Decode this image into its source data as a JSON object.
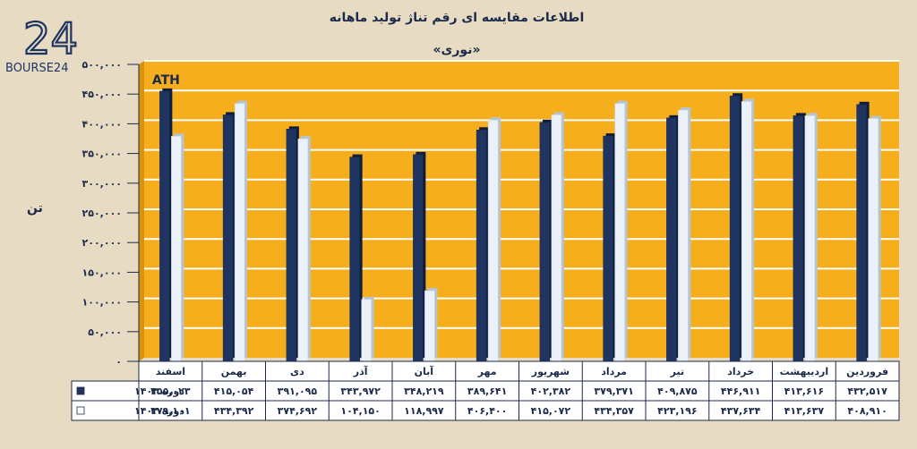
{
  "logo": {
    "text": "BOURSE24",
    "mark": "24"
  },
  "chart_data": {
    "type": "bar",
    "title": "اطلاعات مقایسه ای رقم تناژ تولید ماهانه",
    "subtitle": "«نوری»",
    "ylabel": "تن",
    "ylim": [
      0,
      500000
    ],
    "yticks": [
      "۰",
      "۵۰,۰۰۰",
      "۱۰۰,۰۰۰",
      "۱۵۰,۰۰۰",
      "۲۰۰,۰۰۰",
      "۲۵۰,۰۰۰",
      "۳۰۰,۰۰۰",
      "۳۵۰,۰۰۰",
      "۴۰۰,۰۰۰",
      "۴۵۰,۰۰۰",
      "۵۰۰,۰۰۰"
    ],
    "ytick_values": [
      0,
      50000,
      100000,
      150000,
      200000,
      250000,
      300000,
      350000,
      400000,
      450000,
      500000
    ],
    "categories": [
      "فروردین",
      "اردیبهشت",
      "خرداد",
      "تیر",
      "مرداد",
      "شهریور",
      "مهر",
      "آبان",
      "آذر",
      "دی",
      "بهمن",
      "اسفند"
    ],
    "series": [
      {
        "name": "دوره ۱۴۰۳",
        "color": "#1f3461",
        "values": [
          432517,
          413616,
          446911,
          409875,
          379371,
          402382,
          389641,
          348219,
          343972,
          391095,
          415054,
          455023
        ],
        "labels": [
          "۴۳۲,۵۱۷",
          "۴۱۳,۶۱۶",
          "۴۴۶,۹۱۱",
          "۴۰۹,۸۷۵",
          "۳۷۹,۳۷۱",
          "۴۰۲,۳۸۲",
          "۳۸۹,۶۴۱",
          "۳۴۸,۲۱۹",
          "۳۴۳,۹۷۲",
          "۳۹۱,۰۹۵",
          "۴۱۵,۰۵۴",
          "۴۵۵,۰۲۳"
        ]
      },
      {
        "name": "دوره ۱۴۰۲",
        "color": "#eaf1f8",
        "values": [
          408910,
          413637,
          437634,
          423196,
          434357,
          415072,
          406400,
          118997,
          104150,
          374692,
          434392,
          379101
        ],
        "labels": [
          "۴۰۸,۹۱۰",
          "۴۱۳,۶۳۷",
          "۴۳۷,۶۳۴",
          "۴۲۳,۱۹۶",
          "۴۳۴,۳۵۷",
          "۴۱۵,۰۷۲",
          "۴۰۶,۴۰۰",
          "۱۱۸,۹۹۷",
          "۱۰۴,۱۵۰",
          "۳۷۴,۶۹۲",
          "۴۳۴,۳۹۲",
          "۳۷۹,۱۰۱"
        ]
      }
    ],
    "annotations": [
      {
        "text": "ATH",
        "category": "اسفند"
      }
    ],
    "plot_background": "#f6ae1c",
    "grid": true,
    "legend": "table-bottom-left"
  }
}
